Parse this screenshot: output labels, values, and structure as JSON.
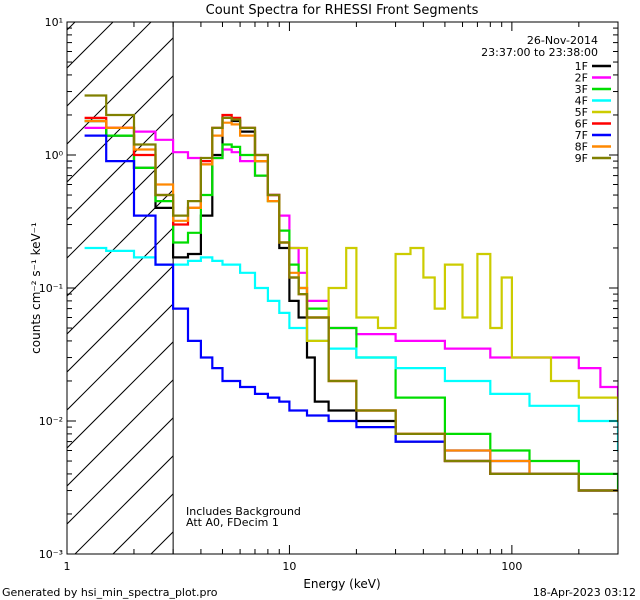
{
  "chart_data": {
    "type": "line",
    "title": "Count Spectra for RHESSI Front Segments",
    "xlabel": "Energy (keV)",
    "ylabel": "counts cm⁻² s⁻¹ keV⁻¹",
    "xscale": "log",
    "yscale": "log",
    "xlim": [
      1,
      300
    ],
    "ylim": [
      0.001,
      10
    ],
    "x_ticks": [
      {
        "value": 1,
        "label": "1"
      },
      {
        "value": 10,
        "label": "10"
      },
      {
        "value": 100,
        "label": "100"
      }
    ],
    "y_ticks": [
      {
        "value": 10,
        "label": "10¹"
      },
      {
        "value": 1,
        "label": "10⁰"
      },
      {
        "value": 0.1,
        "label": "10⁻¹"
      },
      {
        "value": 0.01,
        "label": "10⁻²"
      },
      {
        "value": 0.001,
        "label": "10⁻³"
      }
    ],
    "hatched_region": {
      "x_from": 1,
      "x_to": 3
    },
    "legend_position": "top-right",
    "info_lines": [
      "26-Nov-2014",
      "23:37:00 to 23:38:00"
    ],
    "annotation_lines": [
      "Includes Background",
      "Att A0, FDecim 1"
    ],
    "footer_left": "Generated by hsi_min_spectra_plot.pro",
    "footer_right": "18-Apr-2023 03:12",
    "series": [
      {
        "name": "1F",
        "color": "#000000",
        "x": [
          1.2,
          1.5,
          2,
          2.5,
          3,
          3.5,
          4,
          4.5,
          5,
          5.5,
          6,
          7,
          8,
          9,
          10,
          11,
          12,
          13,
          15,
          20,
          30,
          50,
          80,
          120,
          200,
          300
        ],
        "y": [
          1.8,
          1.4,
          0.8,
          0.4,
          0.17,
          0.18,
          0.35,
          1.0,
          1.9,
          1.8,
          1.5,
          0.9,
          0.5,
          0.2,
          0.08,
          0.06,
          0.03,
          0.014,
          0.012,
          0.01,
          0.007,
          0.005,
          0.004,
          0.004,
          0.003,
          0.003
        ]
      },
      {
        "name": "2F",
        "color": "#ff00ff",
        "x": [
          1.2,
          1.5,
          2,
          2.5,
          3,
          3.5,
          4,
          4.5,
          5,
          5.5,
          6,
          7,
          8,
          9,
          10,
          11,
          12,
          15,
          20,
          30,
          50,
          80,
          120,
          200,
          250,
          300
        ],
        "y": [
          1.6,
          1.6,
          1.5,
          1.3,
          1.05,
          0.95,
          0.85,
          0.95,
          1.1,
          1.05,
          0.9,
          0.7,
          0.5,
          0.35,
          0.2,
          0.13,
          0.08,
          0.05,
          0.045,
          0.04,
          0.035,
          0.03,
          0.03,
          0.025,
          0.018,
          0.012
        ]
      },
      {
        "name": "3F",
        "color": "#00dd00",
        "x": [
          1.2,
          1.5,
          2,
          2.5,
          3,
          3.5,
          4,
          4.5,
          5,
          5.5,
          6,
          7,
          8,
          9,
          10,
          11,
          12,
          15,
          20,
          30,
          50,
          80,
          120,
          200,
          300
        ],
        "y": [
          1.8,
          1.4,
          0.8,
          0.45,
          0.22,
          0.26,
          0.5,
          0.95,
          1.2,
          1.15,
          1.0,
          0.7,
          0.45,
          0.27,
          0.15,
          0.1,
          0.07,
          0.05,
          0.03,
          0.015,
          0.008,
          0.006,
          0.005,
          0.004,
          0.003
        ]
      },
      {
        "name": "4F",
        "color": "#00ffff",
        "x": [
          1.2,
          1.5,
          2,
          2.5,
          3,
          3.5,
          4,
          4.5,
          5,
          6,
          7,
          8,
          9,
          10,
          12,
          15,
          20,
          30,
          50,
          80,
          120,
          200,
          300
        ],
        "y": [
          0.2,
          0.19,
          0.17,
          0.15,
          0.15,
          0.16,
          0.17,
          0.16,
          0.15,
          0.13,
          0.1,
          0.08,
          0.065,
          0.05,
          0.04,
          0.035,
          0.03,
          0.025,
          0.02,
          0.016,
          0.013,
          0.01,
          0.006
        ]
      },
      {
        "name": "5F",
        "color": "#cccc00",
        "x": [
          10,
          12,
          15,
          18,
          20,
          25,
          30,
          35,
          40,
          45,
          50,
          60,
          70,
          80,
          90,
          100,
          150,
          200,
          300
        ],
        "y": [
          0.2,
          0.04,
          0.1,
          0.2,
          0.06,
          0.05,
          0.18,
          0.2,
          0.12,
          0.07,
          0.15,
          0.06,
          0.18,
          0.05,
          0.12,
          0.03,
          0.02,
          0.015,
          0.01
        ]
      },
      {
        "name": "6F",
        "color": "#ff0000",
        "x": [
          1.2,
          1.5,
          2,
          2.5,
          3,
          3.5,
          4,
          4.5,
          5,
          5.5,
          6,
          7,
          8,
          9,
          10,
          11,
          12,
          15,
          20,
          30,
          50,
          80,
          120,
          200,
          300
        ],
        "y": [
          1.9,
          1.6,
          1.0,
          0.5,
          0.3,
          0.4,
          0.9,
          1.6,
          2.0,
          1.9,
          1.6,
          1.0,
          0.5,
          0.22,
          0.12,
          0.09,
          0.06,
          0.02,
          0.012,
          0.008,
          0.005,
          0.004,
          0.004,
          0.003,
          0.003
        ]
      },
      {
        "name": "7F",
        "color": "#0000ff",
        "x": [
          1.2,
          1.5,
          2,
          2.5,
          3,
          3.5,
          4,
          4.5,
          5,
          6,
          7,
          8,
          9,
          10,
          12,
          15,
          20,
          30,
          50,
          80,
          120,
          200,
          300
        ],
        "y": [
          1.4,
          0.9,
          0.35,
          0.15,
          0.07,
          0.04,
          0.03,
          0.025,
          0.02,
          0.018,
          0.016,
          0.015,
          0.014,
          0.012,
          0.011,
          0.01,
          0.009,
          0.007,
          0.006,
          0.005,
          0.004,
          0.003,
          0.003
        ]
      },
      {
        "name": "8F",
        "color": "#ff8800",
        "x": [
          1.2,
          1.5,
          2,
          2.5,
          3,
          3.5,
          4,
          4.5,
          5,
          5.5,
          6,
          7,
          8,
          9,
          10,
          11,
          12,
          15,
          20,
          30,
          50,
          80,
          120,
          200,
          300
        ],
        "y": [
          1.8,
          1.6,
          1.1,
          0.6,
          0.32,
          0.4,
          0.85,
          1.4,
          1.75,
          1.7,
          1.4,
          0.9,
          0.45,
          0.22,
          0.13,
          0.1,
          0.06,
          0.02,
          0.012,
          0.008,
          0.006,
          0.005,
          0.004,
          0.003,
          0.003
        ]
      },
      {
        "name": "9F",
        "color": "#808000",
        "x": [
          1.2,
          1.5,
          2,
          2.5,
          3,
          3.5,
          4,
          4.5,
          5,
          5.5,
          6,
          7,
          8,
          9,
          10,
          11,
          12,
          15,
          20,
          30,
          50,
          80,
          120,
          200,
          300
        ],
        "y": [
          2.8,
          2.0,
          1.2,
          0.5,
          0.35,
          0.45,
          0.95,
          1.6,
          1.9,
          1.85,
          1.6,
          1.0,
          0.5,
          0.22,
          0.12,
          0.09,
          0.06,
          0.02,
          0.012,
          0.008,
          0.005,
          0.004,
          0.004,
          0.003,
          0.003
        ]
      }
    ]
  }
}
